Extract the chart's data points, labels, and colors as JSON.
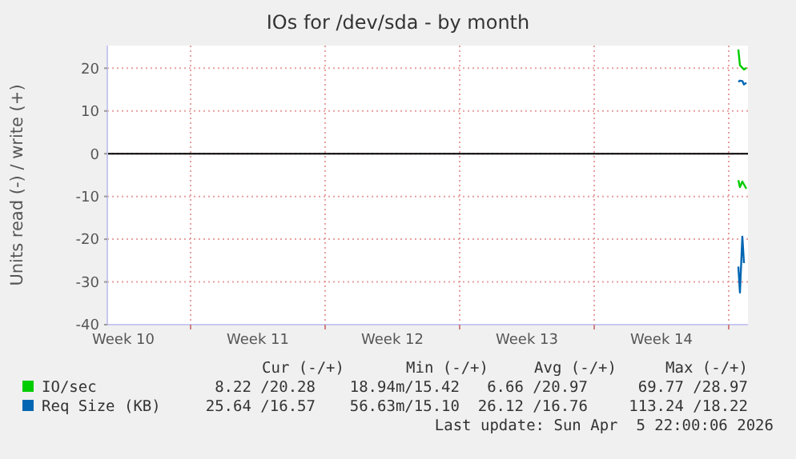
{
  "chart_data": {
    "type": "line",
    "title": "IOs for /dev/sda - by month",
    "ylabel": "Units read (-) / write (+)",
    "xlim": [
      "2026-03-03T16:00",
      "2026-04-06T00:00"
    ],
    "xticks": [
      {
        "value": "2026-03-04T12:00",
        "label": "Week 10"
      },
      {
        "value": "2026-03-08",
        "label": null
      },
      {
        "value": "2026-03-11T12:00",
        "label": "Week 11"
      },
      {
        "value": "2026-03-15",
        "label": null
      },
      {
        "value": "2026-03-18T12:00",
        "label": "Week 12"
      },
      {
        "value": "2026-03-22",
        "label": null
      },
      {
        "value": "2026-03-25T12:00",
        "label": "Week 13"
      },
      {
        "value": "2026-03-29",
        "label": null
      },
      {
        "value": "2026-04-01T12:00",
        "label": "Week 14"
      },
      {
        "value": "2026-04-05",
        "label": null
      }
    ],
    "ylim": [
      -40,
      25.3
    ],
    "yticks": [
      -40,
      -30,
      -20,
      -10,
      0,
      10,
      20
    ],
    "grid": true,
    "legend": "bottom left",
    "marker": "none",
    "line_style": "solid",
    "series": [
      {
        "name": "IO/sec",
        "color": "#00cc00",
        "x": [
          "2026-04-05T12:00",
          "2026-04-05T14:00",
          "2026-04-05T19:00",
          "2026-04-05T22:00"
        ],
        "values": [
          24.4,
          20.7,
          19.7,
          20.1
        ]
      },
      {
        "color": "#00cc00",
        "x": [
          "2026-04-05T12:00",
          "2026-04-05T14:00",
          "2026-04-05T17:00",
          "2026-04-05T22:00"
        ],
        "values": [
          -6.2,
          -7.8,
          -6.5,
          -8.2
        ]
      },
      {
        "color": "#0066b3",
        "x": [
          "2026-04-05T12:00",
          "2026-04-05T14:00",
          "2026-04-05T17:00",
          "2026-04-05T19:00"
        ],
        "values": [
          -26.4,
          -32.5,
          -19.4,
          -25.6
        ]
      },
      {
        "name": "Req Size (KB)",
        "color": "#0066b3",
        "x": [
          "2026-04-05T12:00",
          "2026-04-05T14:00",
          "2026-04-05T17:00",
          "2026-04-05T19:00",
          "2026-04-05T22:00"
        ],
        "values": [
          16.8,
          17.1,
          17,
          16.2,
          16.6
        ]
      }
    ],
    "ref_lines": [
      {
        "axis": "y",
        "value": 0,
        "label": null,
        "color": "#000000"
      }
    ],
    "annotations": [
      "Cur (-/+)",
      "Min (-/+)",
      "Avg (-/+)",
      "Max (-/+)",
      "8.22 /20.28",
      "18.94m/15.42",
      "6.66 /20.97",
      "69.77 /28.97",
      "25.64 /16.57",
      "56.63m/15.10",
      "26.12 /16.76",
      "113.24 /18.22",
      "Last update: Sun Apr  5 22:00:06 2026"
    ]
  }
}
